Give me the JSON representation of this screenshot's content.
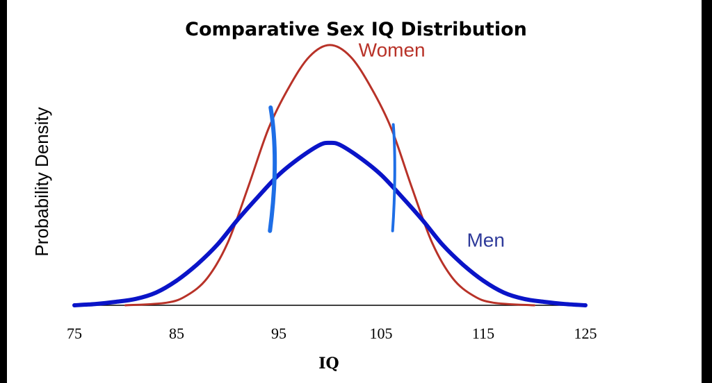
{
  "chart_data": {
    "type": "line",
    "title": "Comparative Sex IQ Distribution",
    "xlabel": "IQ",
    "ylabel": "Probability Density",
    "xlim": [
      75,
      125
    ],
    "ylim": [
      0,
      0.062
    ],
    "grid": false,
    "x_ticks": [
      "75",
      "85",
      "95",
      "105",
      "115",
      "125"
    ],
    "x_tick_values": [
      75,
      85,
      95,
      105,
      115,
      125
    ],
    "series": [
      {
        "name": "Women",
        "color": "#b83228",
        "label_x": 102.8,
        "label_y": 0.0585,
        "points": [
          [
            80,
            0
          ],
          [
            84,
            0.0006
          ],
          [
            86,
            0.0023
          ],
          [
            88,
            0.0064
          ],
          [
            90,
            0.0147
          ],
          [
            92,
            0.0278
          ],
          [
            94,
            0.0416
          ],
          [
            96,
            0.0513
          ],
          [
            98,
            0.0585
          ],
          [
            100,
            0.0612
          ],
          [
            102,
            0.0585
          ],
          [
            104,
            0.0513
          ],
          [
            106,
            0.0416
          ],
          [
            108,
            0.0278
          ],
          [
            110,
            0.0147
          ],
          [
            112,
            0.0064
          ],
          [
            114,
            0.0023
          ],
          [
            116,
            0.0006
          ],
          [
            120,
            0
          ]
        ]
      },
      {
        "name": "Men",
        "color": "#0a14c8",
        "label_x": 113.4,
        "label_y": 0.0138,
        "points": [
          [
            75,
            0
          ],
          [
            77,
            0.0003
          ],
          [
            79,
            0.0008
          ],
          [
            81,
            0.0015
          ],
          [
            83,
            0.003
          ],
          [
            85,
            0.0058
          ],
          [
            87,
            0.0096
          ],
          [
            89,
            0.0143
          ],
          [
            91,
            0.0202
          ],
          [
            93,
            0.0256
          ],
          [
            95,
            0.0307
          ],
          [
            97,
            0.0346
          ],
          [
            99,
            0.0377
          ],
          [
            100,
            0.0382
          ],
          [
            101,
            0.0377
          ],
          [
            103,
            0.0346
          ],
          [
            105,
            0.0307
          ],
          [
            107,
            0.0256
          ],
          [
            109,
            0.0202
          ],
          [
            111,
            0.0143
          ],
          [
            113,
            0.0096
          ],
          [
            115,
            0.0058
          ],
          [
            117,
            0.003
          ],
          [
            119,
            0.0015
          ],
          [
            121,
            0.0008
          ],
          [
            123,
            0.0003
          ],
          [
            125,
            0
          ]
        ]
      }
    ],
    "annotations": [
      {
        "kind": "crossing-marker",
        "x": 94.2,
        "y_from": 0.0465,
        "y_to": 0.0175
      },
      {
        "kind": "crossing-marker",
        "x": 106.2,
        "y_from": 0.0425,
        "y_to": 0.0175
      }
    ]
  },
  "colors": {
    "axis": "#000000",
    "marker": "#1e6ee6",
    "frame": "#000000"
  }
}
